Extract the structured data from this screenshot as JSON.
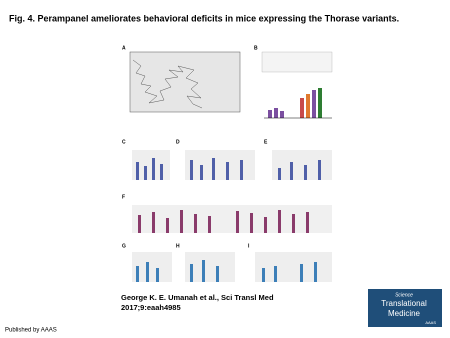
{
  "header": {
    "title": "Fig. 4. Perampanel ameliorates behavioral deficits in mice expressing the Thorase variants."
  },
  "figure": {
    "panels": [
      "A",
      "B",
      "C",
      "D",
      "E",
      "F",
      "G",
      "H",
      "I"
    ]
  },
  "citation": {
    "line1": "George K. E. Umanah et al., Sci Transl Med",
    "line2": "2017;9:eaah4985"
  },
  "logo": {
    "line1": "Science",
    "line2": "Translational",
    "line3": "Medicine",
    "line4": "AAAS"
  },
  "footer": "Published by AAAS"
}
